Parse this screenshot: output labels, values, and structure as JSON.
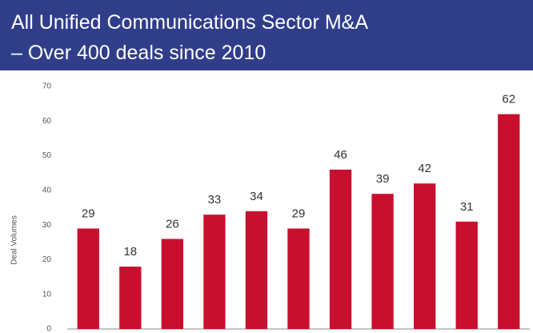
{
  "chart_data": {
    "type": "bar",
    "title": [
      "All Unified Communications Sector M&A",
      "– Over 400 deals since 2010"
    ],
    "ylabel": "Deal Volumes",
    "categories": [
      null,
      null,
      null,
      null,
      null,
      null,
      null,
      null,
      null,
      null,
      null
    ],
    "values": [
      29,
      18,
      26,
      33,
      34,
      29,
      46,
      39,
      42,
      31,
      62
    ],
    "color": "#c8102e",
    "ylim": [
      0,
      70
    ],
    "yticks": [
      0,
      10,
      20,
      30,
      40,
      50,
      60,
      70
    ],
    "grid": false
  }
}
